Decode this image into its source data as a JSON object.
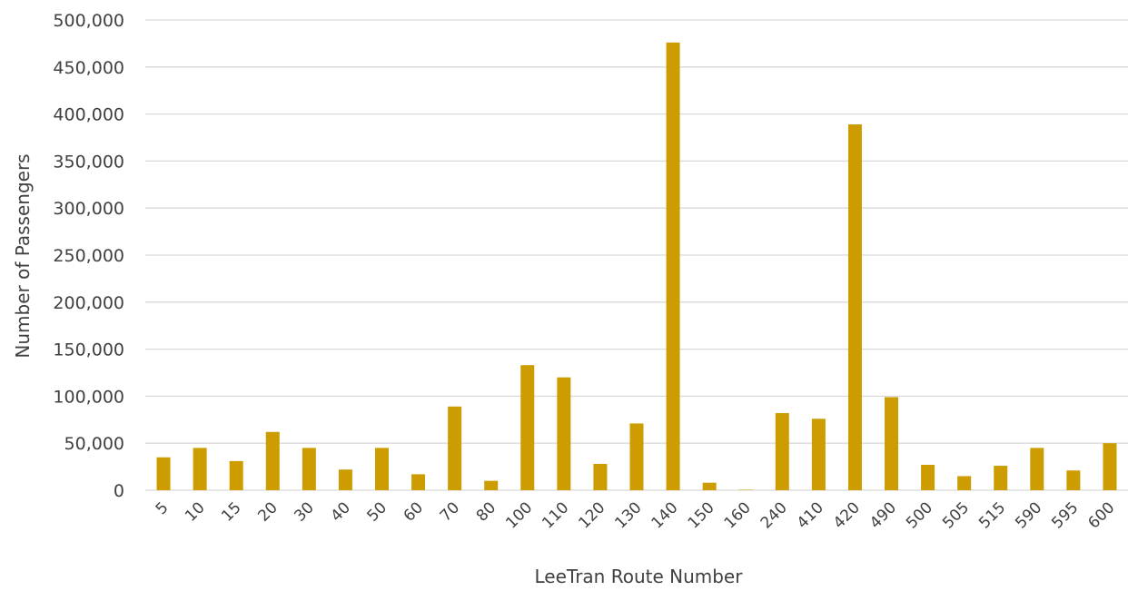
{
  "chart_data": {
    "type": "bar",
    "title": "",
    "xlabel": "LeeTran Route Number",
    "ylabel": "Number of Passengers",
    "ylim": [
      0,
      500000
    ],
    "y_ticks": [
      "0",
      "50,000",
      "100,000",
      "150,000",
      "200,000",
      "250,000",
      "300,000",
      "350,000",
      "400,000",
      "450,000",
      "500,000"
    ],
    "grid": true,
    "legend": "none",
    "bar_color": "#CC9C00",
    "categories": [
      "5",
      "10",
      "15",
      "20",
      "30",
      "40",
      "50",
      "60",
      "70",
      "80",
      "100",
      "110",
      "120",
      "130",
      "140",
      "150",
      "160",
      "240",
      "410",
      "420",
      "490",
      "500",
      "505",
      "515",
      "590",
      "595",
      "600"
    ],
    "values": [
      35000,
      45000,
      31000,
      62000,
      45000,
      22000,
      45000,
      17000,
      89000,
      10000,
      133000,
      120000,
      28000,
      71000,
      476000,
      8000,
      500,
      82000,
      76000,
      389000,
      99000,
      27000,
      15000,
      26000,
      45000,
      21000,
      50000
    ]
  }
}
